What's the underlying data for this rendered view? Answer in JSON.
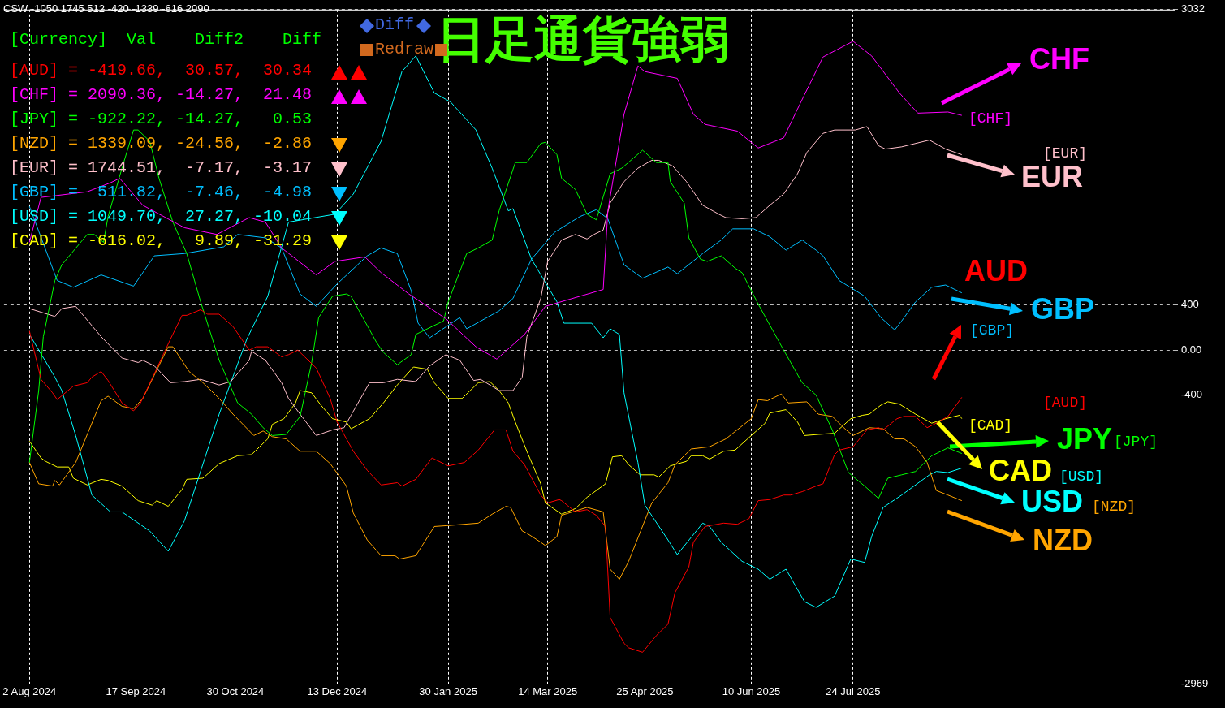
{
  "chart_data": {
    "type": "line",
    "title": "日足通貨強弱",
    "annotations": [
      "CSW -1050 1745 512 -420 -1339 -616 2090",
      "[Currency]  Val    Diff2    Diff",
      "[AUD] = -419.66,  30.57,  30.34",
      "[CHF] = 2090.36, -14.27,  21.48",
      "[JPY] = -922.22, -14.27,   0.53",
      "[NZD] = 1339.09, -24.56,  -2.86",
      "[EUR] = 1744.51,  -7.17,  -3.17",
      "[GBP] =  511.82,  -7.46,  -4.98",
      "[USD] = 1049.70,  27.27, -10.04",
      "[CAD] = -616.02,   9.89, -31.29",
      "Diff",
      "Redraw",
      "[AUD]",
      "[CHF]",
      "[JPY]",
      "[NZD]",
      "[EUR]",
      "[GBP]",
      "[USD]",
      "[CAD]"
    ],
    "xlim": [
      "2024-07-22",
      "2025-12-10"
    ],
    "xticks": [
      {
        "value": "2024-08-02",
        "label": "2 Aug 2024"
      },
      {
        "value": "2024-09-17",
        "label": "17 Sep 2024"
      },
      {
        "value": "2024-10-30",
        "label": "30 Oct 2024"
      },
      {
        "value": "2024-12-13",
        "label": "13 Dec 2024"
      },
      {
        "value": "2025-01-30",
        "label": "30 Jan 2025"
      },
      {
        "value": "2025-03-14",
        "label": "14 Mar 2025"
      },
      {
        "value": "2025-04-25",
        "label": "25 Apr 2025"
      },
      {
        "value": "2025-06-10",
        "label": "10 Jun 2025"
      },
      {
        "value": "2025-07-24",
        "label": "24 Jul 2025"
      }
    ],
    "ylim": [
      -2969,
      3032
    ],
    "yticks": [
      3032,
      400,
      {
        "value": 0,
        "label": "0.00"
      },
      -400,
      -2969
    ],
    "grid": true,
    "legend": "right",
    "marker": "none",
    "line_style": "solid",
    "series": [
      {
        "name": "AUD",
        "color": "#ff0000",
        "x": [
          "2024-08-02",
          "2024-08-07",
          "2024-08-12",
          "2024-08-14",
          "2024-08-21",
          "2024-08-27",
          "2024-08-29",
          "2024-09-02",
          "2024-09-05",
          "2024-09-11",
          "2024-09-16",
          "2024-09-19",
          "2024-09-25",
          "2024-10-02",
          "2024-10-07",
          "2024-10-09",
          "2024-10-15",
          "2024-10-18",
          "2024-10-23",
          "2024-10-29",
          "2024-11-05",
          "2024-11-08",
          "2024-11-13",
          "2024-11-19",
          "2024-11-22",
          "2024-11-26",
          "2024-11-29",
          "2024-12-04",
          "2024-12-10",
          "2024-12-13",
          "2024-12-20",
          "2024-12-26",
          "2025-01-01",
          "2025-01-08",
          "2025-01-10",
          "2025-01-16",
          "2025-01-23",
          "2025-01-30",
          "2025-02-06",
          "2025-02-12",
          "2025-02-19",
          "2025-02-24",
          "2025-02-27",
          "2025-03-04",
          "2025-03-11",
          "2025-03-14",
          "2025-03-19",
          "2025-03-20",
          "2025-03-26",
          "2025-03-31",
          "2025-04-04",
          "2025-04-08",
          "2025-04-10",
          "2025-04-16",
          "2025-04-18",
          "2025-04-24",
          "2025-04-30",
          "2025-05-05",
          "2025-05-08",
          "2025-05-14",
          "2025-05-16",
          "2025-05-21",
          "2025-05-29",
          "2025-06-04",
          "2025-06-09",
          "2025-06-13",
          "2025-06-18",
          "2025-06-24",
          "2025-06-27",
          "2025-07-02",
          "2025-07-08",
          "2025-07-11",
          "2025-07-16",
          "2025-07-18",
          "2025-07-24",
          "2025-07-30",
          "2025-08-04",
          "2025-08-06",
          "2025-08-12",
          "2025-08-15",
          "2025-08-20",
          "2025-08-25",
          "2025-08-28",
          "2025-09-03",
          "2025-09-09"
        ],
        "values": [
          170,
          -260,
          -380,
          -440,
          -320,
          -290,
          -240,
          -190,
          -270,
          -470,
          -540,
          -470,
          -210,
          100,
          310,
          310,
          360,
          320,
          320,
          210,
          0,
          30,
          30,
          -60,
          -40,
          0,
          -60,
          -160,
          -430,
          -640,
          -900,
          -1070,
          -1200,
          -1180,
          -1210,
          -1150,
          -960,
          -1030,
          -1000,
          -890,
          -710,
          -710,
          -900,
          -1020,
          -1290,
          -1360,
          -1330,
          -1340,
          -1440,
          -1420,
          -1470,
          -1570,
          -2380,
          -2610,
          -2650,
          -2690,
          -2540,
          -2440,
          -2160,
          -1930,
          -1710,
          -1570,
          -1540,
          -1550,
          -1500,
          -1340,
          -1330,
          -1290,
          -1290,
          -1260,
          -1210,
          -1190,
          -930,
          -890,
          -860,
          -710,
          -690,
          -710,
          -610,
          -590,
          -590,
          -690,
          -660,
          -590,
          -420
        ]
      },
      {
        "name": "CHF",
        "color": "#ff00ff",
        "x": [
          "2024-08-02",
          "2024-08-07",
          "2024-08-27",
          "2024-09-06",
          "2024-09-10",
          "2024-09-20",
          "2024-10-08",
          "2024-10-22",
          "2024-11-05",
          "2024-11-12",
          "2024-11-19",
          "2024-12-04",
          "2024-12-12",
          "2024-12-25",
          "2025-01-01",
          "2025-01-13",
          "2025-01-29",
          "2025-02-11",
          "2025-02-20",
          "2025-03-04",
          "2025-03-13",
          "2025-03-28",
          "2025-04-07",
          "2025-04-09",
          "2025-04-16",
          "2025-04-22",
          "2025-04-25",
          "2025-05-09",
          "2025-05-16",
          "2025-05-21",
          "2025-06-04",
          "2025-06-13",
          "2025-06-24",
          "2025-07-01",
          "2025-07-11",
          "2025-07-24",
          "2025-08-01",
          "2025-08-13",
          "2025-08-21",
          "2025-09-03",
          "2025-09-09"
        ],
        "values": [
          960,
          1360,
          1410,
          1490,
          1530,
          1290,
          1090,
          1030,
          1180,
          1140,
          910,
          670,
          790,
          830,
          690,
          500,
          280,
          30,
          -80,
          140,
          390,
          480,
          540,
          1240,
          2100,
          2530,
          2480,
          2420,
          2100,
          2010,
          1950,
          1800,
          1890,
          2190,
          2610,
          2750,
          2620,
          2290,
          2110,
          2120,
          2090
        ]
      },
      {
        "name": "JPY",
        "color": "#00ff00",
        "x": [
          "2024-08-02",
          "2024-08-06",
          "2024-08-08",
          "2024-08-13",
          "2024-08-16",
          "2024-08-27",
          "2024-08-30",
          "2024-09-03",
          "2024-09-05",
          "2024-09-11",
          "2024-09-16",
          "2024-09-18",
          "2024-09-23",
          "2024-09-27",
          "2024-10-03",
          "2024-10-09",
          "2024-10-15",
          "2024-10-23",
          "2024-10-31",
          "2024-11-06",
          "2024-11-11",
          "2024-11-15",
          "2024-11-21",
          "2024-11-27",
          "2024-12-02",
          "2024-12-05",
          "2024-12-11",
          "2024-12-17",
          "2024-12-19",
          "2024-12-30",
          "2025-01-02",
          "2025-01-08",
          "2025-01-14",
          "2025-01-16",
          "2025-01-28",
          "2025-01-30",
          "2025-02-07",
          "2025-02-12",
          "2025-02-18",
          "2025-02-21",
          "2025-02-28",
          "2025-03-05",
          "2025-03-11",
          "2025-03-13",
          "2025-03-18",
          "2025-03-20",
          "2025-03-26",
          "2025-03-31",
          "2025-04-04",
          "2025-04-10",
          "2025-04-15",
          "2025-04-24",
          "2025-04-30",
          "2025-05-05",
          "2025-05-06",
          "2025-05-12",
          "2025-05-14",
          "2025-05-19",
          "2025-05-22",
          "2025-05-28",
          "2025-06-03",
          "2025-06-06",
          "2025-06-13",
          "2025-06-24",
          "2025-07-02",
          "2025-07-08",
          "2025-07-15",
          "2025-07-22",
          "2025-07-29",
          "2025-08-04",
          "2025-08-08",
          "2025-08-14",
          "2025-08-20",
          "2025-08-27",
          "2025-09-03",
          "2025-09-09"
        ],
        "values": [
          -1000,
          -360,
          120,
          620,
          760,
          1030,
          1030,
          960,
          1190,
          1620,
          1960,
          1960,
          1860,
          1530,
          1140,
          860,
          430,
          -90,
          -470,
          -570,
          -690,
          -760,
          -750,
          -590,
          -110,
          290,
          480,
          500,
          480,
          70,
          -20,
          -130,
          -40,
          140,
          260,
          430,
          860,
          910,
          980,
          1240,
          1670,
          1670,
          1840,
          1850,
          1740,
          1530,
          1430,
          1210,
          1160,
          1570,
          1620,
          1780,
          1670,
          1670,
          1500,
          1310,
          1000,
          810,
          790,
          840,
          730,
          690,
          410,
          0,
          -290,
          -400,
          -710,
          -1090,
          -1210,
          -1320,
          -1140,
          -1110,
          -1080,
          -940,
          -870,
          -920
        ]
      },
      {
        "name": "NZD",
        "color": "#ffa500",
        "x": [
          "2024-08-02",
          "2024-08-06",
          "2024-08-12",
          "2024-08-13",
          "2024-08-15",
          "2024-08-22",
          "2024-09-02",
          "2024-09-05",
          "2024-09-11",
          "2024-09-16",
          "2024-09-20",
          "2024-10-01",
          "2024-10-03",
          "2024-10-10",
          "2024-10-16",
          "2024-10-23",
          "2024-10-29",
          "2024-11-07",
          "2024-11-11",
          "2024-11-15",
          "2024-11-21",
          "2024-11-27",
          "2024-12-04",
          "2024-12-10",
          "2024-12-17",
          "2024-12-20",
          "2024-12-26",
          "2025-01-01",
          "2025-01-07",
          "2025-01-09",
          "2025-01-16",
          "2025-01-24",
          "2025-01-31",
          "2025-02-12",
          "2025-02-18",
          "2025-02-24",
          "2025-02-26",
          "2025-03-03",
          "2025-03-05",
          "2025-03-11",
          "2025-03-13",
          "2025-03-18",
          "2025-03-20",
          "2025-03-31",
          "2025-04-07",
          "2025-04-10",
          "2025-04-14",
          "2025-04-18",
          "2025-04-28",
          "2025-05-05",
          "2025-05-08",
          "2025-05-15",
          "2025-05-23",
          "2025-05-30",
          "2025-06-10",
          "2025-06-13",
          "2025-06-17",
          "2025-06-23",
          "2025-06-26",
          "2025-07-04",
          "2025-07-09",
          "2025-07-15",
          "2025-07-21",
          "2025-07-24",
          "2025-07-31",
          "2025-08-06",
          "2025-08-11",
          "2025-08-15",
          "2025-08-20",
          "2025-08-25",
          "2025-08-29",
          "2025-09-03",
          "2025-09-09"
        ],
        "values": [
          -1000,
          -1190,
          -1210,
          -1160,
          -1200,
          -1000,
          -450,
          -410,
          -500,
          -520,
          -430,
          30,
          30,
          -190,
          -290,
          -430,
          -570,
          -760,
          -720,
          -770,
          -790,
          -900,
          -900,
          -1010,
          -1210,
          -1450,
          -1690,
          -1830,
          -1830,
          -1860,
          -1830,
          -1570,
          -1560,
          -1540,
          -1460,
          -1390,
          -1400,
          -1610,
          -1630,
          -1710,
          -1740,
          -1660,
          -1470,
          -1400,
          -1440,
          -1950,
          -2040,
          -1880,
          -1360,
          -1180,
          -1020,
          -880,
          -860,
          -790,
          -610,
          -440,
          -450,
          -390,
          -470,
          -460,
          -570,
          -590,
          -710,
          -760,
          -690,
          -700,
          -790,
          -790,
          -860,
          -1000,
          -1250,
          -1290,
          -1340
        ]
      },
      {
        "name": "EUR",
        "color": "#ffc0cb",
        "x": [
          "2024-08-02",
          "2024-08-13",
          "2024-08-16",
          "2024-08-22",
          "2024-09-02",
          "2024-09-11",
          "2024-09-18",
          "2024-09-20",
          "2024-09-25",
          "2024-10-02",
          "2024-10-08",
          "2024-10-15",
          "2024-10-23",
          "2024-10-28",
          "2024-11-05",
          "2024-11-06",
          "2024-11-12",
          "2024-11-19",
          "2024-11-22",
          "2024-11-27",
          "2024-12-04",
          "2024-12-11",
          "2024-12-16",
          "2024-12-19",
          "2024-12-27",
          "2025-01-02",
          "2025-01-08",
          "2025-01-16",
          "2025-01-22",
          "2025-01-29",
          "2025-02-04",
          "2025-02-10",
          "2025-02-13",
          "2025-02-21",
          "2025-02-27",
          "2025-03-03",
          "2025-03-05",
          "2025-03-11",
          "2025-03-14",
          "2025-03-20",
          "2025-03-26",
          "2025-03-31",
          "2025-04-03",
          "2025-04-07",
          "2025-04-10",
          "2025-04-16",
          "2025-04-22",
          "2025-04-28",
          "2025-05-01",
          "2025-05-07",
          "2025-05-13",
          "2025-05-20",
          "2025-05-27",
          "2025-05-30",
          "2025-06-06",
          "2025-06-12",
          "2025-06-18",
          "2025-06-24",
          "2025-06-30",
          "2025-07-04",
          "2025-07-11",
          "2025-07-16",
          "2025-07-25",
          "2025-07-30",
          "2025-08-04",
          "2025-08-07",
          "2025-08-14",
          "2025-08-26",
          "2025-09-02",
          "2025-09-09"
        ],
        "values": [
          370,
          300,
          370,
          390,
          120,
          -70,
          -110,
          -90,
          -140,
          -290,
          -280,
          -260,
          -310,
          -280,
          -90,
          -10,
          -90,
          -290,
          -430,
          -570,
          -760,
          -710,
          -690,
          -580,
          -290,
          -290,
          -260,
          -280,
          -140,
          -40,
          -90,
          -270,
          -260,
          -360,
          -360,
          -240,
          120,
          460,
          790,
          980,
          1030,
          990,
          1030,
          1070,
          1310,
          1500,
          1620,
          1690,
          1690,
          1640,
          1500,
          1290,
          1210,
          1180,
          1170,
          1180,
          1290,
          1390,
          1570,
          1760,
          1930,
          1960,
          1960,
          1990,
          1820,
          1790,
          1810,
          1870,
          1790,
          1740
        ]
      },
      {
        "name": "GBP",
        "color": "#00bfff",
        "x": [
          "2024-08-02",
          "2024-08-14",
          "2024-08-21",
          "2024-09-02",
          "2024-09-16",
          "2024-09-20",
          "2024-09-25",
          "2024-10-08",
          "2024-10-25",
          "2024-10-31",
          "2024-11-12",
          "2024-11-19",
          "2024-11-27",
          "2024-12-04",
          "2024-12-13",
          "2024-12-26",
          "2025-01-01",
          "2025-01-08",
          "2025-01-14",
          "2025-01-17",
          "2025-01-22",
          "2025-02-04",
          "2025-02-07",
          "2025-02-21",
          "2025-02-27",
          "2025-03-07",
          "2025-03-17",
          "2025-03-28",
          "2025-04-04",
          "2025-04-09",
          "2025-04-16",
          "2025-04-24",
          "2025-05-05",
          "2025-05-09",
          "2025-05-20",
          "2025-05-28",
          "2025-06-02",
          "2025-06-11",
          "2025-06-18",
          "2025-06-25",
          "2025-07-02",
          "2025-07-08",
          "2025-07-11",
          "2025-07-18",
          "2025-07-29",
          "2025-08-05",
          "2025-08-11",
          "2025-08-14",
          "2025-08-20",
          "2025-08-27",
          "2025-09-02",
          "2025-09-09"
        ],
        "values": [
          1280,
          620,
          560,
          670,
          570,
          690,
          840,
          860,
          920,
          1030,
          1000,
          910,
          500,
          390,
          590,
          840,
          910,
          860,
          530,
          240,
          110,
          290,
          190,
          350,
          460,
          810,
          1050,
          1190,
          1250,
          1170,
          760,
          640,
          740,
          680,
          860,
          980,
          1080,
          1080,
          1010,
          890,
          980,
          890,
          840,
          620,
          480,
          290,
          180,
          260,
          430,
          560,
          580,
          510
        ]
      },
      {
        "name": "USD",
        "color": "#00ffff",
        "x": [
          "2024-08-02",
          "2024-08-13",
          "2024-08-16",
          "2024-08-22",
          "2024-08-29",
          "2024-09-06",
          "2024-09-11",
          "2024-09-23",
          "2024-10-01",
          "2024-10-08",
          "2024-10-14",
          "2024-10-23",
          "2024-11-04",
          "2024-11-13",
          "2024-11-22",
          "2024-12-12",
          "2024-12-20",
          "2025-01-01",
          "2025-01-10",
          "2025-01-16",
          "2025-01-24",
          "2025-01-31",
          "2025-02-11",
          "2025-02-18",
          "2025-02-25",
          "2025-02-27",
          "2025-03-07",
          "2025-03-18",
          "2025-03-21",
          "2025-04-02",
          "2025-04-07",
          "2025-04-10",
          "2025-04-14",
          "2025-04-16",
          "2025-04-22",
          "2025-04-25",
          "2025-05-05",
          "2025-05-09",
          "2025-05-20",
          "2025-05-23",
          "2025-05-28",
          "2025-06-06",
          "2025-06-13",
          "2025-06-18",
          "2025-06-25",
          "2025-07-03",
          "2025-07-08",
          "2025-07-16",
          "2025-07-23",
          "2025-07-29",
          "2025-08-01",
          "2025-08-06",
          "2025-08-14",
          "2025-08-26",
          "2025-08-29",
          "2025-09-03",
          "2025-09-09"
        ],
        "values": [
          140,
          -240,
          -360,
          -760,
          -1290,
          -1440,
          -1440,
          -1610,
          -1790,
          -1520,
          -1140,
          -570,
          100,
          480,
          1140,
          1210,
          1390,
          1860,
          2480,
          2620,
          2290,
          2210,
          1960,
          1620,
          1240,
          1260,
          810,
          430,
          240,
          240,
          110,
          190,
          140,
          -380,
          -1000,
          -1380,
          -1690,
          -1820,
          -1540,
          -1570,
          -1710,
          -1880,
          -1950,
          -2040,
          -1950,
          -2240,
          -2290,
          -2190,
          -1860,
          -1890,
          -1660,
          -1400,
          -1290,
          -1110,
          -1080,
          -1090,
          -1050
        ]
      },
      {
        "name": "CAD",
        "color": "#ffff00",
        "x": [
          "2024-08-02",
          "2024-08-07",
          "2024-08-09",
          "2024-08-14",
          "2024-08-19",
          "2024-08-21",
          "2024-08-27",
          "2024-09-02",
          "2024-09-05",
          "2024-09-11",
          "2024-09-18",
          "2024-09-24",
          "2024-09-26",
          "2024-10-01",
          "2024-10-07",
          "2024-10-09",
          "2024-10-16",
          "2024-10-23",
          "2024-10-31",
          "2024-11-06",
          "2024-11-13",
          "2024-11-15",
          "2024-11-20",
          "2024-11-25",
          "2024-11-27",
          "2024-12-02",
          "2024-12-06",
          "2024-12-11",
          "2024-12-17",
          "2024-12-19",
          "2024-12-27",
          "2025-01-02",
          "2025-01-08",
          "2025-01-15",
          "2025-01-21",
          "2025-01-24",
          "2025-01-30",
          "2025-02-05",
          "2025-02-12",
          "2025-02-17",
          "2025-02-21",
          "2025-02-25",
          "2025-02-28",
          "2025-03-05",
          "2025-03-11",
          "2025-03-13",
          "2025-03-20",
          "2025-03-26",
          "2025-03-31",
          "2025-04-02",
          "2025-04-08",
          "2025-04-11",
          "2025-04-15",
          "2025-04-18",
          "2025-04-23",
          "2025-04-29",
          "2025-05-01",
          "2025-05-06",
          "2025-05-13",
          "2025-05-15",
          "2025-05-20",
          "2025-05-23",
          "2025-05-29",
          "2025-06-03",
          "2025-06-10",
          "2025-06-16",
          "2025-06-18",
          "2025-06-25",
          "2025-06-30",
          "2025-07-03",
          "2025-07-09",
          "2025-07-16",
          "2025-07-23",
          "2025-07-28",
          "2025-07-31",
          "2025-08-05",
          "2025-08-08",
          "2025-08-13",
          "2025-08-20",
          "2025-08-27",
          "2025-09-02",
          "2025-09-08",
          "2025-09-09"
        ],
        "values": [
          -810,
          -960,
          -990,
          -1040,
          -1040,
          -1140,
          -1200,
          -1150,
          -1160,
          -1210,
          -1340,
          -1380,
          -1340,
          -1390,
          -1240,
          -1150,
          -1140,
          -1010,
          -940,
          -930,
          -790,
          -660,
          -610,
          -470,
          -360,
          -380,
          -490,
          -610,
          -640,
          -700,
          -610,
          -470,
          -310,
          -150,
          -170,
          -290,
          -430,
          -430,
          -290,
          -280,
          -360,
          -470,
          -640,
          -900,
          -1190,
          -1360,
          -1460,
          -1410,
          -1310,
          -1280,
          -1190,
          -950,
          -940,
          -1020,
          -1110,
          -1110,
          -1130,
          -1030,
          -990,
          -940,
          -940,
          -970,
          -900,
          -890,
          -760,
          -650,
          -560,
          -530,
          -640,
          -760,
          -750,
          -740,
          -610,
          -580,
          -570,
          -490,
          -460,
          -480,
          -570,
          -650,
          -610,
          -580,
          -610
        ]
      }
    ]
  }
}
